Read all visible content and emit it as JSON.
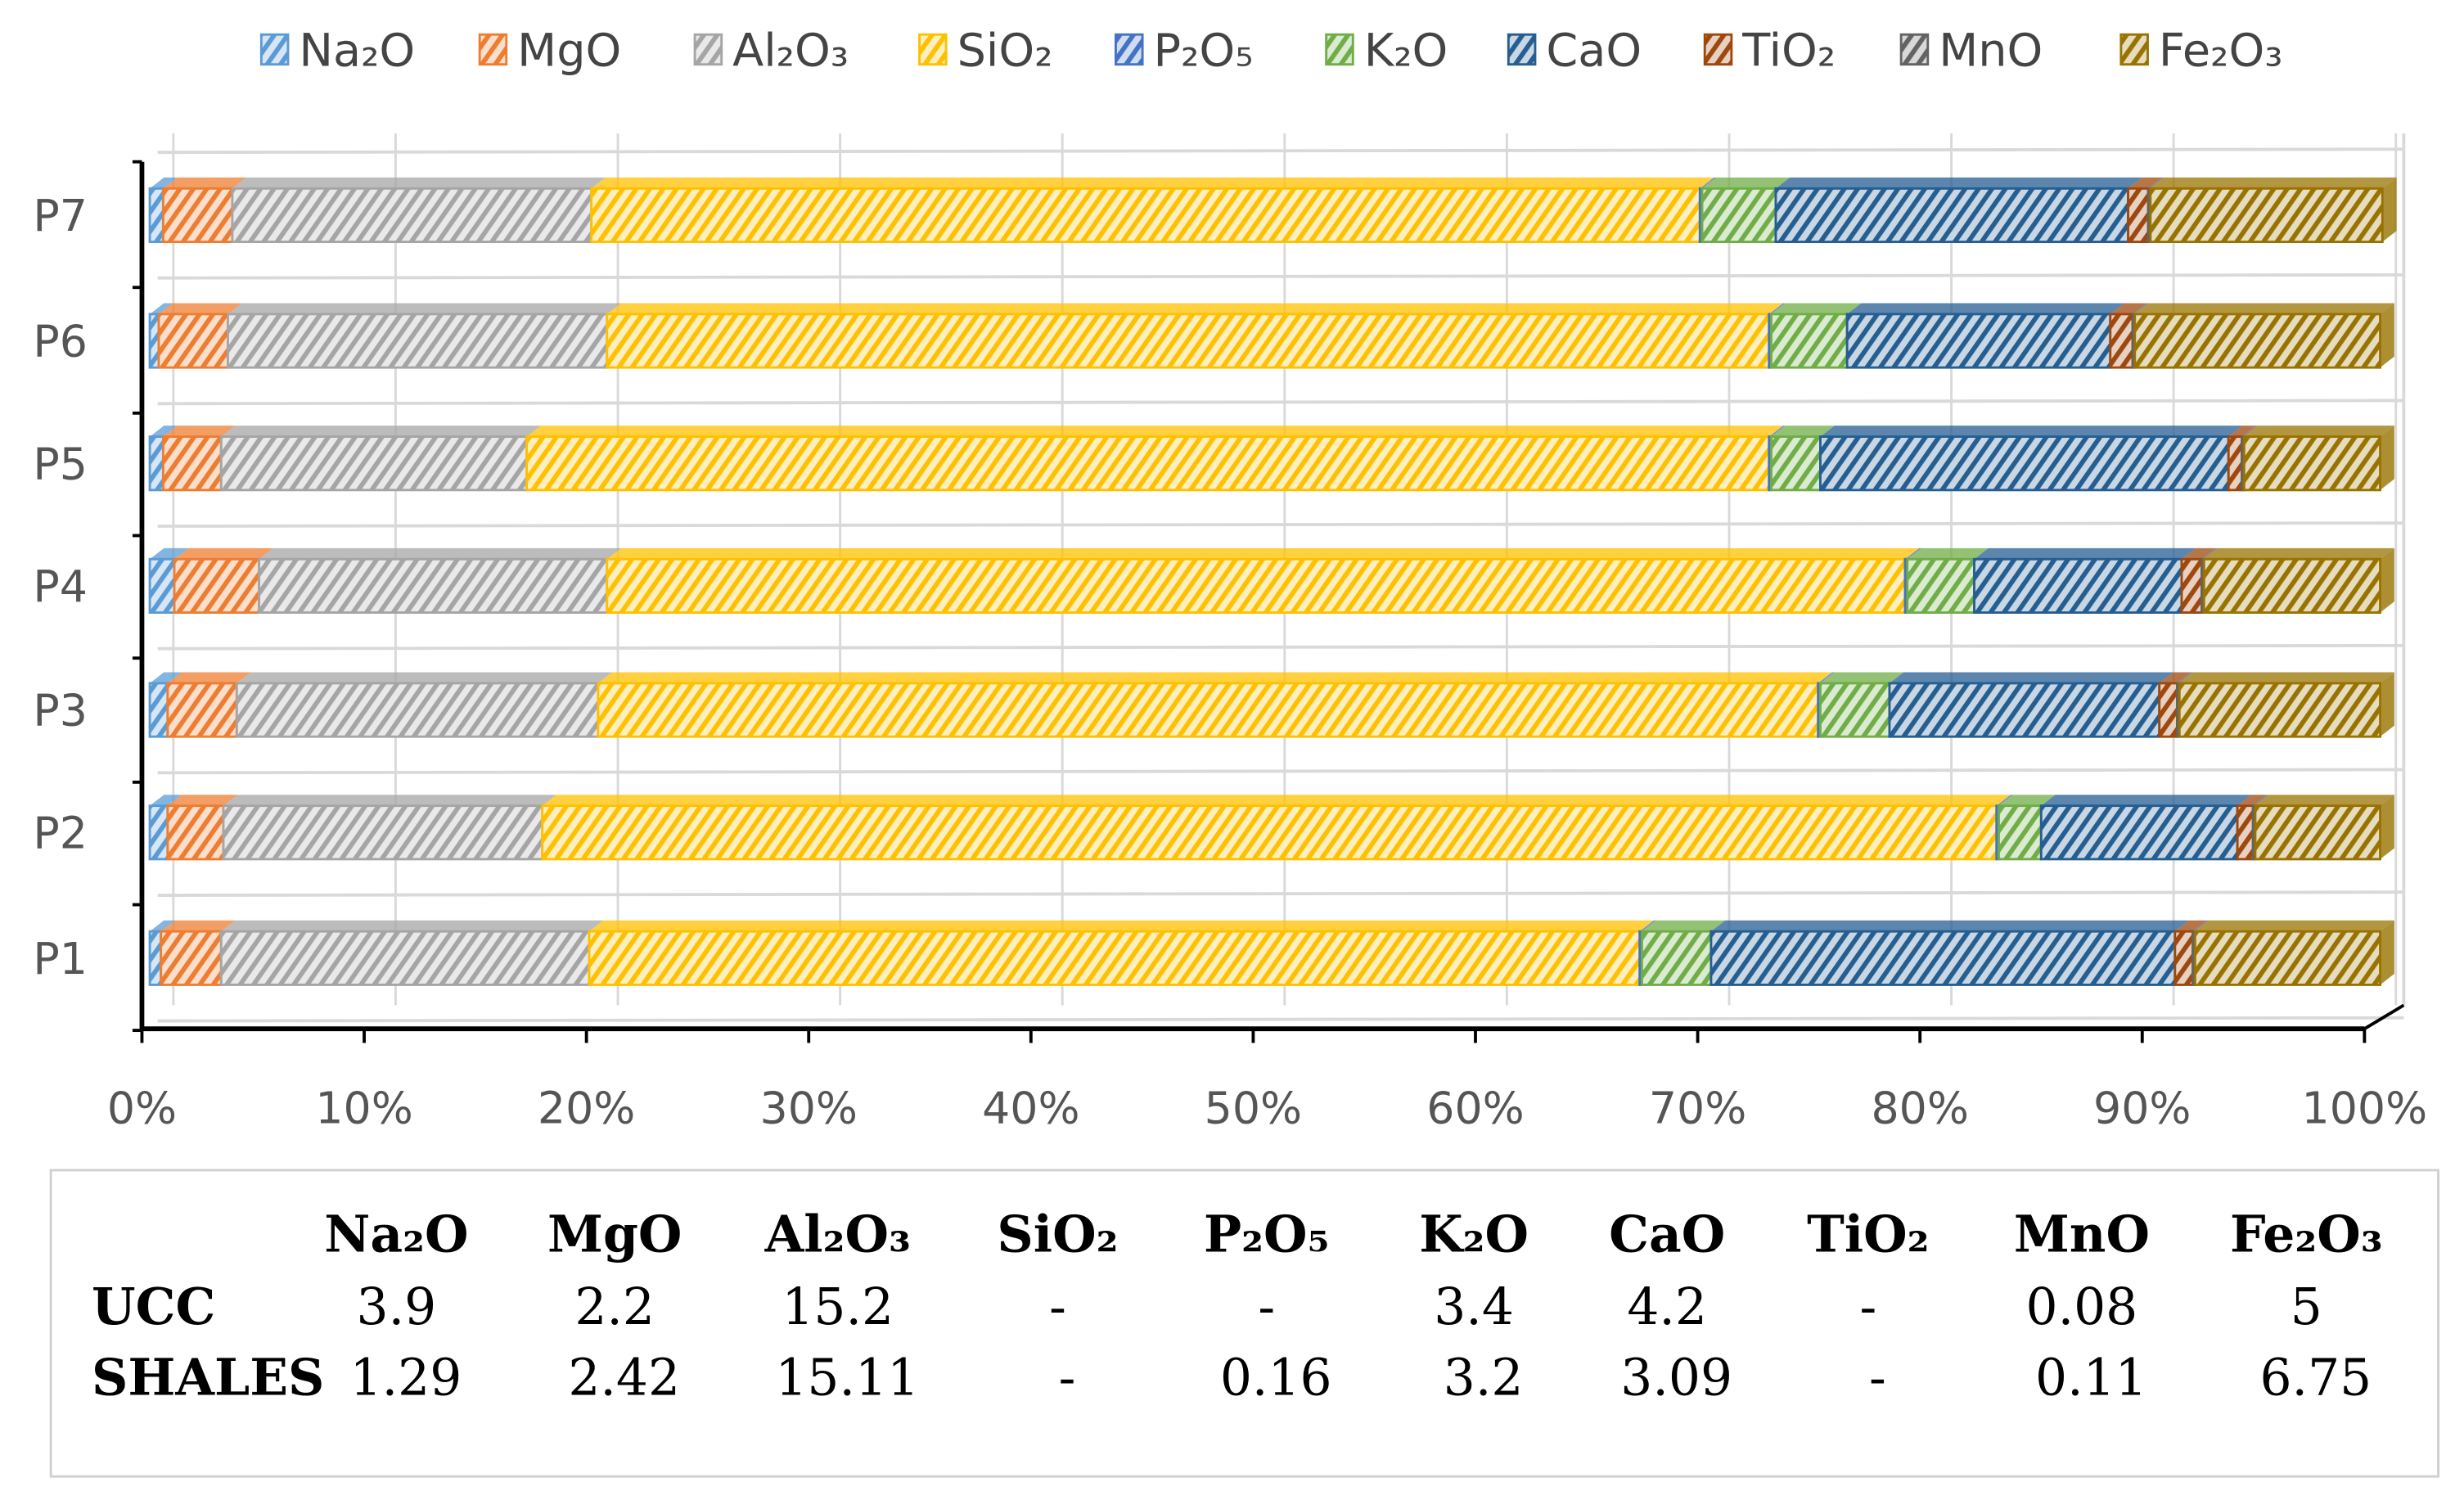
{
  "chart_data": {
    "type": "bar",
    "orientation": "horizontal",
    "stacked": "100%",
    "style": "3d-hatched",
    "categories": [
      "P1",
      "P2",
      "P3",
      "P4",
      "P5",
      "P6",
      "P7"
    ],
    "xlim": [
      0,
      100
    ],
    "xticks": [
      "0%",
      "10%",
      "20%",
      "30%",
      "40%",
      "50%",
      "60%",
      "70%",
      "80%",
      "90%",
      "100%"
    ],
    "grid": true,
    "legend": "top",
    "series": [
      {
        "name": "Na₂O",
        "color": "#5B9BD5",
        "values": [
          0.5,
          0.8,
          0.8,
          1.1,
          0.6,
          0.4,
          0.6
        ]
      },
      {
        "name": "MgO",
        "color": "#ED7D31",
        "values": [
          2.7,
          2.5,
          3.1,
          3.8,
          2.6,
          3.1,
          3.1
        ]
      },
      {
        "name": "Al₂O₃",
        "color": "#A5A5A5",
        "values": [
          16.5,
          14.3,
          16.2,
          15.6,
          13.7,
          17.0,
          16.1
        ]
      },
      {
        "name": "SiO₂",
        "color": "#FFC000",
        "values": [
          47.1,
          65.2,
          54.7,
          58.2,
          55.7,
          52.1,
          49.7
        ]
      },
      {
        "name": "P₂O₅",
        "color": "#4472C4",
        "values": [
          0.1,
          0.1,
          0.1,
          0.1,
          0.1,
          0.1,
          0.1
        ]
      },
      {
        "name": "K₂O",
        "color": "#70AD47",
        "values": [
          3.1,
          1.9,
          3.1,
          3.0,
          2.2,
          3.4,
          3.3
        ]
      },
      {
        "name": "CaO",
        "color": "#255E91",
        "values": [
          20.8,
          8.8,
          12.1,
          9.3,
          18.3,
          11.8,
          15.8
        ]
      },
      {
        "name": "TiO₂",
        "color": "#9E480E",
        "values": [
          0.8,
          0.7,
          0.8,
          0.9,
          0.6,
          1.0,
          0.9
        ]
      },
      {
        "name": "MnO",
        "color": "#636363",
        "values": [
          0.1,
          0.1,
          0.1,
          0.1,
          0.1,
          0.1,
          0.1
        ]
      },
      {
        "name": "Fe₂O₃",
        "color": "#997300",
        "values": [
          8.3,
          5.6,
          9.0,
          7.9,
          6.1,
          11.0,
          10.4
        ]
      }
    ]
  },
  "table": {
    "headers": [
      "Na₂O",
      "MgO",
      "Al₂O₃",
      "SiO₂",
      "P₂O₅",
      "K₂O",
      "CaO",
      "TiO₂",
      "MnO",
      "Fe₂O₃"
    ],
    "rows": [
      {
        "label": "UCC",
        "values": [
          "3.9",
          "2.2",
          "15.2",
          "-",
          "-",
          "3.4",
          "4.2",
          "-",
          "0.08",
          "5"
        ]
      },
      {
        "label": "SHALES",
        "values": [
          "1.29",
          "2.42",
          "15.11",
          "-",
          "0.16",
          "3.2",
          "3.09",
          "-",
          "0.11",
          "6.75"
        ]
      }
    ]
  }
}
